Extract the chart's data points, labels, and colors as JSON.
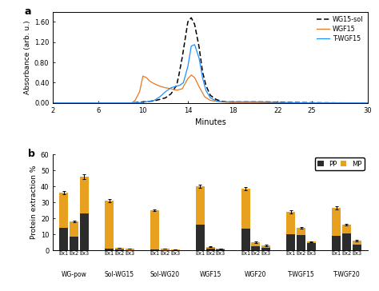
{
  "panel_a": {
    "title": "a",
    "xlabel": "Minutes",
    "ylabel": "Absorbance (arb. u.)",
    "xlim": [
      2,
      30
    ],
    "ylim": [
      0.0,
      1.8
    ],
    "yticks": [
      0.0,
      0.4,
      0.8,
      1.2,
      1.6
    ],
    "xticks": [
      2,
      6,
      10,
      14,
      18,
      22,
      25,
      30
    ],
    "lines": {
      "WG15-sol": {
        "color": "#000000",
        "linestyle": "dashed",
        "x": [
          2,
          5,
          7,
          9,
          10,
          11,
          12,
          12.5,
          13,
          13.2,
          13.5,
          14,
          14.3,
          14.6,
          15,
          15.3,
          15.6,
          16,
          16.5,
          17,
          17.5,
          18,
          19,
          20,
          21,
          22,
          23,
          25,
          28,
          30
        ],
        "y": [
          0,
          0,
          0,
          0,
          0.02,
          0.04,
          0.1,
          0.18,
          0.35,
          0.55,
          0.9,
          1.6,
          1.68,
          1.55,
          1.1,
          0.62,
          0.35,
          0.15,
          0.07,
          0.03,
          0.02,
          0.02,
          0.02,
          0.02,
          0.02,
          0.015,
          0.01,
          0.005,
          0,
          0
        ]
      },
      "WGF15": {
        "color": "#E87722",
        "linestyle": "solid",
        "x": [
          2,
          5,
          7,
          9,
          9.3,
          9.7,
          10,
          10.3,
          10.6,
          11,
          11.5,
          12,
          12.5,
          13,
          13.5,
          14,
          14.3,
          14.6,
          15,
          15.5,
          16,
          17,
          18,
          19,
          20,
          22,
          25,
          28,
          30
        ],
        "y": [
          0,
          0,
          0,
          0,
          0.05,
          0.22,
          0.53,
          0.5,
          0.43,
          0.38,
          0.33,
          0.3,
          0.28,
          0.25,
          0.28,
          0.48,
          0.55,
          0.5,
          0.32,
          0.12,
          0.05,
          0.02,
          0.01,
          0.01,
          0.01,
          0.005,
          0,
          0,
          0
        ]
      },
      "T-WGF15": {
        "color": "#1E90FF",
        "linestyle": "solid",
        "x": [
          2,
          5,
          7,
          9,
          10,
          11,
          11.5,
          12,
          12.5,
          13,
          13.3,
          13.6,
          14,
          14.3,
          14.6,
          15,
          15.3,
          15.6,
          16,
          16.5,
          17,
          18,
          19,
          20,
          21,
          22,
          25,
          28,
          30
        ],
        "y": [
          0,
          0,
          0,
          0,
          0.01,
          0.05,
          0.12,
          0.22,
          0.3,
          0.33,
          0.35,
          0.4,
          0.72,
          1.12,
          1.15,
          0.88,
          0.5,
          0.25,
          0.1,
          0.04,
          0.02,
          0.02,
          0.02,
          0.02,
          0.015,
          0.01,
          0,
          0,
          0
        ]
      }
    }
  },
  "panel_b": {
    "title": "b",
    "ylabel": "Protein extraction %",
    "ylim": [
      0,
      60
    ],
    "yticks": [
      0,
      10,
      20,
      30,
      40,
      50,
      60
    ],
    "groups": [
      "WG-pow",
      "Sol-WG15",
      "Sol-WG20",
      "WGF15",
      "WGF20",
      "T-WGF15",
      "T-WGF20"
    ],
    "extractions": [
      "Ex1",
      "Ex2",
      "Ex3"
    ],
    "pp_color": "#2C2C2C",
    "mp_color": "#E8A020",
    "bar_width": 0.45,
    "pp_values": [
      [
        14.0,
        8.5,
        23.0
      ],
      [
        1.0,
        0.3,
        0.2
      ],
      [
        0.4,
        0.2,
        0.1
      ],
      [
        16.0,
        1.0,
        0.5
      ],
      [
        13.5,
        2.5,
        1.5
      ],
      [
        10.0,
        9.5,
        4.5
      ],
      [
        9.0,
        10.5,
        3.5
      ]
    ],
    "mp_values": [
      [
        22.0,
        9.5,
        23.0
      ],
      [
        30.0,
        1.2,
        0.8
      ],
      [
        24.5,
        0.7,
        0.3
      ],
      [
        24.0,
        1.2,
        0.5
      ],
      [
        25.0,
        2.5,
        1.5
      ],
      [
        14.0,
        4.5,
        0.8
      ],
      [
        17.5,
        5.5,
        2.5
      ]
    ],
    "pp_errors": [
      [
        0.5,
        0.4,
        0.8
      ],
      [
        0.1,
        0.05,
        0.04
      ],
      [
        0.05,
        0.04,
        0.03
      ],
      [
        0.5,
        0.1,
        0.1
      ],
      [
        0.5,
        0.2,
        0.2
      ],
      [
        0.5,
        0.5,
        0.3
      ],
      [
        0.4,
        0.5,
        0.2
      ]
    ],
    "mp_errors": [
      [
        0.8,
        0.5,
        1.2
      ],
      [
        0.8,
        0.15,
        0.1
      ],
      [
        0.5,
        0.1,
        0.06
      ],
      [
        0.8,
        0.15,
        0.1
      ],
      [
        1.0,
        0.3,
        0.2
      ],
      [
        0.8,
        0.3,
        0.1
      ],
      [
        0.8,
        0.4,
        0.2
      ]
    ]
  }
}
